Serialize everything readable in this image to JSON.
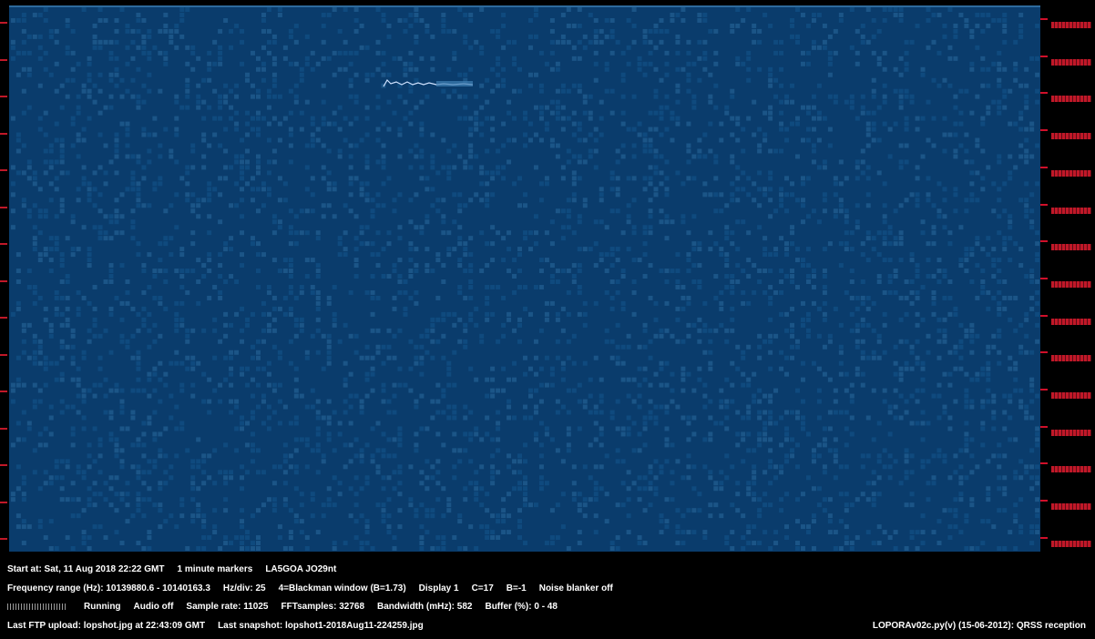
{
  "status": {
    "line1": {
      "start": "Start at: Sat, 11 Aug 2018 22:22 GMT",
      "markers": "1 minute markers",
      "station": "LA5GOA JO29nt"
    },
    "line2": {
      "freq_range": "Frequency range (Hz): 10139880.6 - 10140163.3",
      "hz_div": "Hz/div: 25",
      "window": "4=Blackman window (B=1.73)",
      "display": "Display 1",
      "contrast": "C=17",
      "brightness": "B=-1",
      "noise_blanker": "Noise blanker off"
    },
    "line3": {
      "running": "Running",
      "audio": "Audio off",
      "sample_rate": "Sample rate: 11025",
      "fft": "FFTsamples: 32768",
      "bandwidth": "Bandwidth (mHz): 582",
      "buffer": "Buffer (%): 0 - 48"
    },
    "line4": {
      "ftp": "Last FTP upload: lopshot.jpg at 22:43:09 GMT",
      "snapshot": "Last snapshot: lopshot1-2018Aug11-224259.jpg"
    },
    "credit": "LOPORAv02c.py(v) (15-06-2012): QRSS reception"
  },
  "colors": {
    "background": "#0a3c6c",
    "noise_light": "#2a6a9e",
    "noise_dark": "#0f4a7e",
    "signal": "#cfe2ff",
    "scale_red": "#c01828"
  }
}
